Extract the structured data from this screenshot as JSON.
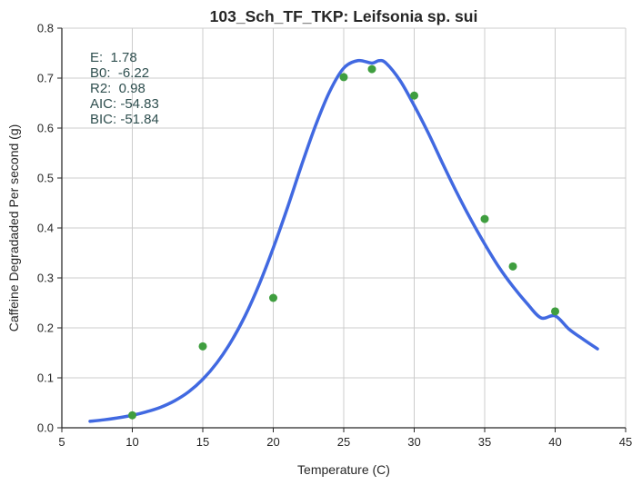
{
  "chart_data": {
    "type": "scatter",
    "title": "103_Sch_TF_TKP: Leifsonia sp. sui",
    "xlabel": "Temperature (C)",
    "ylabel": "Caffeine Degradaded Per second (g)",
    "xlim": [
      5,
      45
    ],
    "ylim": [
      0,
      0.8
    ],
    "xticks": [
      5,
      10,
      15,
      20,
      25,
      30,
      35,
      40,
      45
    ],
    "yticks": [
      0.0,
      0.1,
      0.2,
      0.3,
      0.4,
      0.5,
      0.6,
      0.7,
      0.8
    ],
    "grid": true,
    "point_color": "#3f9e3f",
    "line_color": "#4169e1",
    "points": [
      {
        "x": 10,
        "y": 0.025
      },
      {
        "x": 15,
        "y": 0.163
      },
      {
        "x": 20,
        "y": 0.26
      },
      {
        "x": 25,
        "y": 0.702
      },
      {
        "x": 27,
        "y": 0.718
      },
      {
        "x": 30,
        "y": 0.665
      },
      {
        "x": 35,
        "y": 0.418
      },
      {
        "x": 37,
        "y": 0.323
      },
      {
        "x": 40,
        "y": 0.233
      }
    ],
    "fit_curve": {
      "x": [
        7,
        8,
        9,
        10,
        11,
        12,
        13,
        14,
        15,
        16,
        17,
        18,
        19,
        20,
        21,
        22,
        23,
        24,
        25,
        26,
        27,
        27.5,
        28,
        29,
        30,
        31,
        32,
        33,
        34,
        35,
        36,
        37,
        38,
        39,
        40,
        41,
        42,
        43
      ],
      "y": [
        0.013,
        0.016,
        0.02,
        0.025,
        0.032,
        0.041,
        0.054,
        0.072,
        0.097,
        0.13,
        0.172,
        0.224,
        0.287,
        0.36,
        0.44,
        0.525,
        0.605,
        0.673,
        0.72,
        0.735,
        0.73,
        0.735,
        0.73,
        0.695,
        0.645,
        0.59,
        0.53,
        0.472,
        0.418,
        0.368,
        0.322,
        0.283,
        0.249,
        0.22,
        0.224,
        0.197,
        0.177,
        0.158
      ]
    },
    "annotation_lines": [
      "E:  1.78",
      "B0:  -6.22",
      "R2:  0.98",
      "AIC: -54.83",
      "BIC: -51.84"
    ]
  }
}
